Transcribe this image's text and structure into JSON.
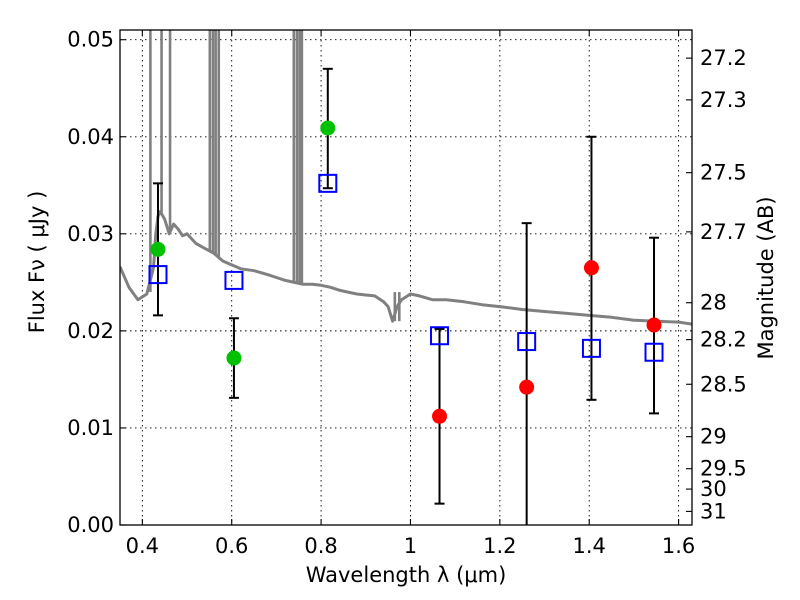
{
  "chart_data": {
    "type": "scatter",
    "xlabel": "Wavelength  λ (μm)",
    "ylabel_left": "Flux  Fν  ( μJy )",
    "ylabel_right": "Magnitude (AB)",
    "xlim": [
      0.35,
      1.63
    ],
    "ylim": [
      0.0,
      0.051
    ],
    "x_ticks": [
      0.4,
      0.6,
      0.8,
      1.0,
      1.2,
      1.4,
      1.6
    ],
    "x_tick_labels": [
      "0.4",
      "0.6",
      "0.8",
      "1",
      "1.2",
      "1.4",
      "1.6"
    ],
    "y_ticks": [
      0.0,
      0.01,
      0.02,
      0.03,
      0.04,
      0.05
    ],
    "y_tick_labels": [
      "0.00",
      "0.01",
      "0.02",
      "0.03",
      "0.04",
      "0.05"
    ],
    "right_ticks": [
      {
        "label": "27.2",
        "flux": 0.0481
      },
      {
        "label": "27.3",
        "flux": 0.0438
      },
      {
        "label": "27.5",
        "flux": 0.0363
      },
      {
        "label": "27.7",
        "flux": 0.0302
      },
      {
        "label": "28",
        "flux": 0.0229
      },
      {
        "label": "28.2",
        "flux": 0.0191
      },
      {
        "label": "28.5",
        "flux": 0.0145
      },
      {
        "label": "29",
        "flux": 0.0091
      },
      {
        "label": "29.5",
        "flux": 0.0058
      },
      {
        "label": "30",
        "flux": 0.0037
      },
      {
        "label": "31",
        "flux": 0.0014
      }
    ],
    "grid": true,
    "series": [
      {
        "kind": "model_spectrum",
        "color": "#808080",
        "points": [
          [
            0.35,
            0.0266
          ],
          [
            0.37,
            0.0245
          ],
          [
            0.39,
            0.0232
          ],
          [
            0.41,
            0.0238
          ],
          [
            0.425,
            0.0265
          ],
          [
            0.43,
            0.03
          ],
          [
            0.435,
            0.0318
          ],
          [
            0.44,
            0.0323
          ],
          [
            0.45,
            0.0315
          ],
          [
            0.46,
            0.03
          ],
          [
            0.47,
            0.031
          ],
          [
            0.48,
            0.0305
          ],
          [
            0.49,
            0.0298
          ],
          [
            0.5,
            0.03
          ],
          [
            0.52,
            0.029
          ],
          [
            0.54,
            0.0285
          ],
          [
            0.56,
            0.028
          ],
          [
            0.58,
            0.0272
          ],
          [
            0.6,
            0.0268
          ],
          [
            0.62,
            0.0264
          ],
          [
            0.65,
            0.0262
          ],
          [
            0.68,
            0.0258
          ],
          [
            0.7,
            0.0255
          ],
          [
            0.72,
            0.0252
          ],
          [
            0.74,
            0.025
          ],
          [
            0.76,
            0.0248
          ],
          [
            0.78,
            0.0248
          ],
          [
            0.8,
            0.0247
          ],
          [
            0.82,
            0.0245
          ],
          [
            0.84,
            0.0242
          ],
          [
            0.86,
            0.024
          ],
          [
            0.88,
            0.0238
          ],
          [
            0.9,
            0.0237
          ],
          [
            0.92,
            0.0236
          ],
          [
            0.94,
            0.023
          ],
          [
            0.95,
            0.0225
          ],
          [
            0.96,
            0.021
          ],
          [
            0.97,
            0.0225
          ],
          [
            0.98,
            0.0232
          ],
          [
            1.0,
            0.0238
          ],
          [
            1.02,
            0.0236
          ],
          [
            1.05,
            0.0232
          ],
          [
            1.08,
            0.0232
          ],
          [
            1.12,
            0.023
          ],
          [
            1.16,
            0.0227
          ],
          [
            1.2,
            0.0225
          ],
          [
            1.25,
            0.0222
          ],
          [
            1.3,
            0.022
          ],
          [
            1.35,
            0.0218
          ],
          [
            1.4,
            0.0216
          ],
          [
            1.45,
            0.0214
          ],
          [
            1.5,
            0.0211
          ],
          [
            1.55,
            0.021
          ],
          [
            1.6,
            0.0209
          ],
          [
            1.63,
            0.0207
          ]
        ],
        "spikes": [
          {
            "x": 0.418,
            "from": 0.024,
            "to": 0.051
          },
          {
            "x": 0.443,
            "from": 0.032,
            "to": 0.051
          },
          {
            "x": 0.462,
            "from": 0.03,
            "to": 0.051
          },
          {
            "x": 0.551,
            "from": 0.0282,
            "to": 0.051
          },
          {
            "x": 0.558,
            "from": 0.028,
            "to": 0.051
          },
          {
            "x": 0.564,
            "from": 0.0278,
            "to": 0.051
          },
          {
            "x": 0.571,
            "from": 0.0276,
            "to": 0.051
          },
          {
            "x": 0.739,
            "from": 0.025,
            "to": 0.051
          },
          {
            "x": 0.746,
            "from": 0.025,
            "to": 0.051
          },
          {
            "x": 0.752,
            "from": 0.0249,
            "to": 0.051
          },
          {
            "x": 0.757,
            "from": 0.0249,
            "to": 0.051
          },
          {
            "x": 0.965,
            "from": 0.021,
            "to": 0.024
          },
          {
            "x": 0.975,
            "from": 0.021,
            "to": 0.024
          }
        ]
      },
      {
        "kind": "model_points",
        "marker": "open_square",
        "color": "#0000ff",
        "points": [
          [
            0.435,
            0.0258
          ],
          [
            0.605,
            0.0252
          ],
          [
            0.815,
            0.0352
          ],
          [
            1.065,
            0.0195
          ],
          [
            1.26,
            0.0189
          ],
          [
            1.405,
            0.0182
          ],
          [
            1.545,
            0.0178
          ]
        ]
      },
      {
        "kind": "detections",
        "marker": "filled_circle",
        "color": "#00c000",
        "points": [
          {
            "x": 0.435,
            "y": 0.0284,
            "ylo": 0.0216,
            "yhi": 0.0352
          },
          {
            "x": 0.605,
            "y": 0.0172,
            "ylo": 0.0131,
            "yhi": 0.0213
          },
          {
            "x": 0.815,
            "y": 0.0409,
            "ylo": 0.0347,
            "yhi": 0.047
          }
        ]
      },
      {
        "kind": "marginal_detections",
        "marker": "filled_circle",
        "color": "#ff0000",
        "points": [
          {
            "x": 1.065,
            "y": 0.0112,
            "ylo": 0.0022,
            "yhi": 0.0202
          },
          {
            "x": 1.26,
            "y": 0.0142,
            "ylo": -0.002,
            "yhi": 0.0311
          },
          {
            "x": 1.405,
            "y": 0.0265,
            "ylo": 0.0129,
            "yhi": 0.04
          },
          {
            "x": 1.545,
            "y": 0.0206,
            "ylo": 0.0115,
            "yhi": 0.0296
          }
        ]
      }
    ]
  }
}
